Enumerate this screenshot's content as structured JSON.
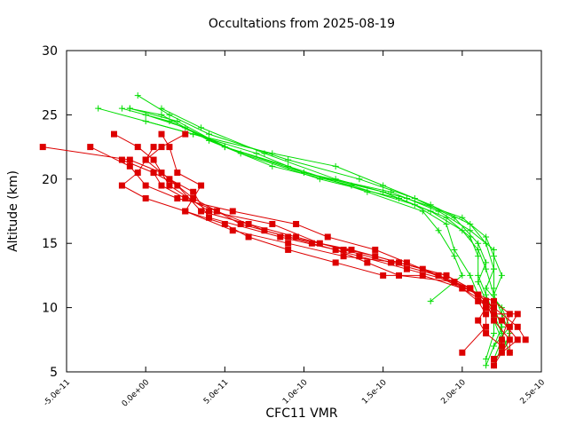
{
  "chart_data": {
    "type": "line",
    "title": "Occultations from 2025-08-19",
    "xlabel": "CFC11 VMR",
    "ylabel": "Altitude (km)",
    "xlim": [
      -5e-11,
      2.5e-10
    ],
    "ylim": [
      5,
      30
    ],
    "xticks": [
      {
        "value": -5e-11,
        "label": "-5.0e-11"
      },
      {
        "value": 0,
        "label": "0.0e+00"
      },
      {
        "value": 5e-11,
        "label": "5.0e-11"
      },
      {
        "value": 1e-10,
        "label": "1.0e-10"
      },
      {
        "value": 1.5e-10,
        "label": "1.5e-10"
      },
      {
        "value": 2e-10,
        "label": "2.0e-10"
      },
      {
        "value": 2.5e-10,
        "label": "2.5e-10"
      }
    ],
    "yticks": [
      {
        "value": 5,
        "label": "5"
      },
      {
        "value": 10,
        "label": "10"
      },
      {
        "value": 15,
        "label": "15"
      },
      {
        "value": 20,
        "label": "20"
      },
      {
        "value": 25,
        "label": "25"
      },
      {
        "value": 30,
        "label": "30"
      }
    ],
    "grid": false,
    "legend": "none",
    "series": [
      {
        "color": "#00dd00",
        "marker": "plus",
        "points": [
          [
            -3e-11,
            25.5
          ],
          [
            3e-11,
            23.5
          ],
          [
            8e-11,
            22.0
          ],
          [
            1.2e-10,
            21.0
          ],
          [
            1.5e-10,
            19.5
          ],
          [
            1.8e-10,
            18.0
          ],
          [
            2.05e-10,
            16.5
          ],
          [
            2.15e-10,
            15.0
          ],
          [
            2.2e-10,
            13.0
          ],
          [
            2.2e-10,
            11.5
          ],
          [
            2.2e-10,
            10.0
          ],
          [
            2.25e-10,
            8.5
          ],
          [
            2.25e-10,
            7.0
          ],
          [
            2.2e-10,
            5.5
          ]
        ]
      },
      {
        "color": "#00dd00",
        "marker": "plus",
        "points": [
          [
            -5e-12,
            26.5
          ],
          [
            1.5e-11,
            25.0
          ],
          [
            4e-11,
            23.5
          ],
          [
            9e-11,
            21.5
          ],
          [
            1.35e-10,
            20.0
          ],
          [
            1.7e-10,
            18.5
          ],
          [
            1.95e-10,
            17.0
          ],
          [
            2.1e-10,
            15.0
          ],
          [
            2.15e-10,
            13.5
          ],
          [
            2.1e-10,
            12.0
          ],
          [
            2.15e-10,
            10.5
          ],
          [
            2.2e-10,
            9.0
          ],
          [
            2.25e-10,
            7.5
          ],
          [
            2.2e-10,
            6.0
          ]
        ]
      },
      {
        "color": "#00dd00",
        "marker": "plus",
        "points": [
          [
            -1e-11,
            25.5
          ],
          [
            2e-11,
            24.5
          ],
          [
            5e-11,
            22.5
          ],
          [
            1e-10,
            20.5
          ],
          [
            1.5e-10,
            19.0
          ],
          [
            1.8e-10,
            17.5
          ],
          [
            2e-10,
            16.0
          ],
          [
            2.1e-10,
            14.5
          ],
          [
            2.15e-10,
            13.0
          ],
          [
            2.2e-10,
            11.0
          ],
          [
            2.25e-10,
            9.5
          ],
          [
            2.3e-10,
            8.0
          ],
          [
            2.25e-10,
            6.5
          ]
        ]
      },
      {
        "color": "#00dd00",
        "marker": "plus",
        "points": [
          [
            0.0,
            25.0
          ],
          [
            2.5e-11,
            24.0
          ],
          [
            6e-11,
            22.0
          ],
          [
            1.1e-10,
            20.0
          ],
          [
            1.6e-10,
            18.5
          ],
          [
            1.9e-10,
            17.0
          ],
          [
            2.05e-10,
            15.5
          ],
          [
            2.1e-10,
            14.0
          ],
          [
            2.1e-10,
            12.5
          ],
          [
            2.15e-10,
            11.0
          ],
          [
            2.2e-10,
            9.5
          ],
          [
            2.2e-10,
            8.0
          ],
          [
            2.15e-10,
            6.0
          ]
        ]
      },
      {
        "color": "#00dd00",
        "marker": "plus",
        "points": [
          [
            -1e-11,
            25.5
          ],
          [
            1e-11,
            25.0
          ],
          [
            4e-11,
            23.0
          ],
          [
            8e-11,
            21.0
          ],
          [
            1.3e-10,
            19.5
          ],
          [
            1.7e-10,
            18.0
          ],
          [
            1.9e-10,
            16.5
          ],
          [
            1.95e-10,
            14.5
          ],
          [
            2.05e-10,
            12.5
          ],
          [
            2.1e-10,
            11.0
          ],
          [
            2.2e-10,
            10.0
          ],
          [
            2.25e-10,
            8.5
          ],
          [
            2.2e-10,
            7.0
          ]
        ]
      },
      {
        "color": "#00dd00",
        "marker": "plus",
        "points": [
          [
            -1.5e-11,
            25.5
          ],
          [
            1.5e-11,
            24.5
          ],
          [
            5e-11,
            22.5
          ],
          [
            9e-11,
            21.0
          ],
          [
            1.4e-10,
            19.0
          ],
          [
            1.75e-10,
            17.5
          ],
          [
            1.85e-10,
            16.0
          ],
          [
            1.95e-10,
            14.0
          ],
          [
            2e-10,
            12.5
          ],
          [
            1.8e-10,
            10.5
          ]
        ]
      },
      {
        "color": "#00dd00",
        "marker": "plus",
        "points": [
          [
            0.0,
            24.5
          ],
          [
            3e-11,
            23.5
          ],
          [
            7e-11,
            22.0
          ],
          [
            1e-10,
            20.5
          ],
          [
            1.55e-10,
            19.0
          ],
          [
            1.85e-10,
            17.5
          ],
          [
            2.05e-10,
            16.0
          ],
          [
            2.2e-10,
            14.5
          ],
          [
            2.2e-10,
            13.0
          ],
          [
            2.15e-10,
            11.5
          ],
          [
            2.25e-10,
            10.0
          ],
          [
            2.3e-10,
            8.5
          ],
          [
            2.2e-10,
            7.0
          ],
          [
            2.15e-10,
            5.5
          ]
        ]
      },
      {
        "color": "#00dd00",
        "marker": "plus",
        "points": [
          [
            1e-11,
            25.5
          ],
          [
            3.5e-11,
            24.0
          ],
          [
            7.5e-11,
            22.0
          ],
          [
            1.2e-10,
            20.0
          ],
          [
            1.65e-10,
            18.5
          ],
          [
            2e-10,
            17.0
          ],
          [
            2.15e-10,
            15.5
          ],
          [
            2.2e-10,
            14.0
          ],
          [
            2.25e-10,
            12.5
          ],
          [
            2.2e-10,
            11.0
          ],
          [
            2.2e-10,
            9.5
          ],
          [
            2.25e-10,
            8.0
          ],
          [
            2.3e-10,
            6.5
          ]
        ]
      },
      {
        "color": "#dd0000",
        "marker": "square",
        "points": [
          [
            -6.5e-11,
            22.5
          ],
          [
            -1e-11,
            21.5
          ],
          [
            1e-11,
            20.5
          ],
          [
            3e-11,
            18.5
          ],
          [
            6e-11,
            16.5
          ],
          [
            9e-11,
            15.5
          ],
          [
            1.3e-10,
            14.5
          ],
          [
            1.6e-10,
            13.5
          ],
          [
            1.9e-10,
            12.5
          ],
          [
            2.05e-10,
            11.5
          ],
          [
            2.15e-10,
            10.5
          ],
          [
            2.2e-10,
            9.0
          ],
          [
            2.3e-10,
            7.5
          ],
          [
            2.2e-10,
            5.5
          ]
        ]
      },
      {
        "color": "#dd0000",
        "marker": "square",
        "points": [
          [
            -2e-11,
            23.5
          ],
          [
            -5e-12,
            22.5
          ],
          [
            5e-12,
            21.5
          ],
          [
            1.5e-11,
            19.5
          ],
          [
            4e-11,
            17.5
          ],
          [
            8e-11,
            16.5
          ],
          [
            1.1e-10,
            15.0
          ],
          [
            1.45e-10,
            14.0
          ],
          [
            1.75e-10,
            13.0
          ],
          [
            2e-10,
            11.5
          ],
          [
            2.2e-10,
            10.0
          ],
          [
            2.35e-10,
            8.5
          ],
          [
            2.4e-10,
            7.5
          ]
        ]
      },
      {
        "color": "#dd0000",
        "marker": "square",
        "points": [
          [
            -3.5e-11,
            22.5
          ],
          [
            -1e-11,
            21.0
          ],
          [
            0.0,
            19.5
          ],
          [
            2e-11,
            18.5
          ],
          [
            5.5e-11,
            17.5
          ],
          [
            9.5e-11,
            16.5
          ],
          [
            1.15e-10,
            15.5
          ],
          [
            1.45e-10,
            14.5
          ],
          [
            1.65e-10,
            13.5
          ],
          [
            1.85e-10,
            12.5
          ],
          [
            2.1e-10,
            11.0
          ],
          [
            2.2e-10,
            10.5
          ],
          [
            2.3e-10,
            9.5
          ],
          [
            2.25e-10,
            7.5
          ],
          [
            2.25e-10,
            6.5
          ]
        ]
      },
      {
        "color": "#dd0000",
        "marker": "square",
        "points": [
          [
            -1.5e-11,
            21.5
          ],
          [
            5e-12,
            20.5
          ],
          [
            2e-11,
            19.5
          ],
          [
            3.5e-11,
            17.5
          ],
          [
            6.5e-11,
            16.5
          ],
          [
            9.5e-11,
            15.5
          ],
          [
            1.25e-10,
            14.5
          ],
          [
            1.55e-10,
            13.5
          ],
          [
            1.85e-10,
            12.5
          ],
          [
            2.05e-10,
            11.5
          ],
          [
            2.15e-10,
            10.5
          ],
          [
            2.2e-10,
            9.5
          ],
          [
            2.35e-10,
            9.5
          ],
          [
            2.3e-10,
            8.5
          ],
          [
            2.3e-10,
            6.5
          ]
        ]
      },
      {
        "color": "#dd0000",
        "marker": "square",
        "points": [
          [
            5e-12,
            22.5
          ],
          [
            0.0,
            21.5
          ],
          [
            -5e-12,
            20.5
          ],
          [
            -1.5e-11,
            19.5
          ],
          [
            0.0,
            18.5
          ],
          [
            2.5e-11,
            17.5
          ],
          [
            5.5e-11,
            16.0
          ],
          [
            9e-11,
            15.0
          ],
          [
            1.25e-10,
            14.0
          ],
          [
            1.6e-10,
            13.5
          ],
          [
            1.9e-10,
            12.5
          ],
          [
            2.05e-10,
            11.5
          ],
          [
            2.15e-10,
            10.0
          ],
          [
            2.25e-10,
            9.0
          ],
          [
            2.35e-10,
            7.5
          ],
          [
            2.2e-10,
            6.0
          ]
        ]
      },
      {
        "color": "#dd0000",
        "marker": "square",
        "points": [
          [
            1e-11,
            23.5
          ],
          [
            1.5e-11,
            22.5
          ],
          [
            2e-11,
            20.5
          ],
          [
            3.5e-11,
            19.5
          ],
          [
            2.5e-11,
            17.5
          ],
          [
            5e-11,
            16.5
          ],
          [
            6.5e-11,
            15.5
          ],
          [
            9e-11,
            14.5
          ],
          [
            1.2e-10,
            13.5
          ],
          [
            1.5e-10,
            12.5
          ],
          [
            1.75e-10,
            12.5
          ],
          [
            2e-10,
            11.5
          ],
          [
            2.1e-10,
            10.5
          ],
          [
            2.15e-10,
            9.5
          ],
          [
            2.15e-10,
            8.5
          ],
          [
            2e-10,
            6.5
          ]
        ]
      },
      {
        "color": "#dd0000",
        "marker": "square",
        "points": [
          [
            2.5e-11,
            23.5
          ],
          [
            1e-11,
            22.5
          ],
          [
            0.0,
            21.5
          ],
          [
            1.5e-11,
            20.0
          ],
          [
            3e-11,
            19.0
          ],
          [
            4e-11,
            17.0
          ],
          [
            8.5e-11,
            15.5
          ],
          [
            1.2e-10,
            14.5
          ],
          [
            1.4e-10,
            13.5
          ],
          [
            1.6e-10,
            12.5
          ],
          [
            1.95e-10,
            12.0
          ],
          [
            2.1e-10,
            11.0
          ],
          [
            2.15e-10,
            10.0
          ],
          [
            2.1e-10,
            9.0
          ],
          [
            2.15e-10,
            8.0
          ],
          [
            2.25e-10,
            7.0
          ]
        ]
      },
      {
        "color": "#dd0000",
        "marker": "square",
        "points": [
          [
            5e-12,
            20.5
          ],
          [
            1e-11,
            19.5
          ],
          [
            2.5e-11,
            18.5
          ],
          [
            4.5e-11,
            17.5
          ],
          [
            7.5e-11,
            16.0
          ],
          [
            1.05e-10,
            15.0
          ],
          [
            1.35e-10,
            14.0
          ],
          [
            1.65e-10,
            13.0
          ],
          [
            1.95e-10,
            12.0
          ],
          [
            2.1e-10,
            11.0
          ],
          [
            2.2e-10,
            10.0
          ]
        ]
      }
    ]
  }
}
